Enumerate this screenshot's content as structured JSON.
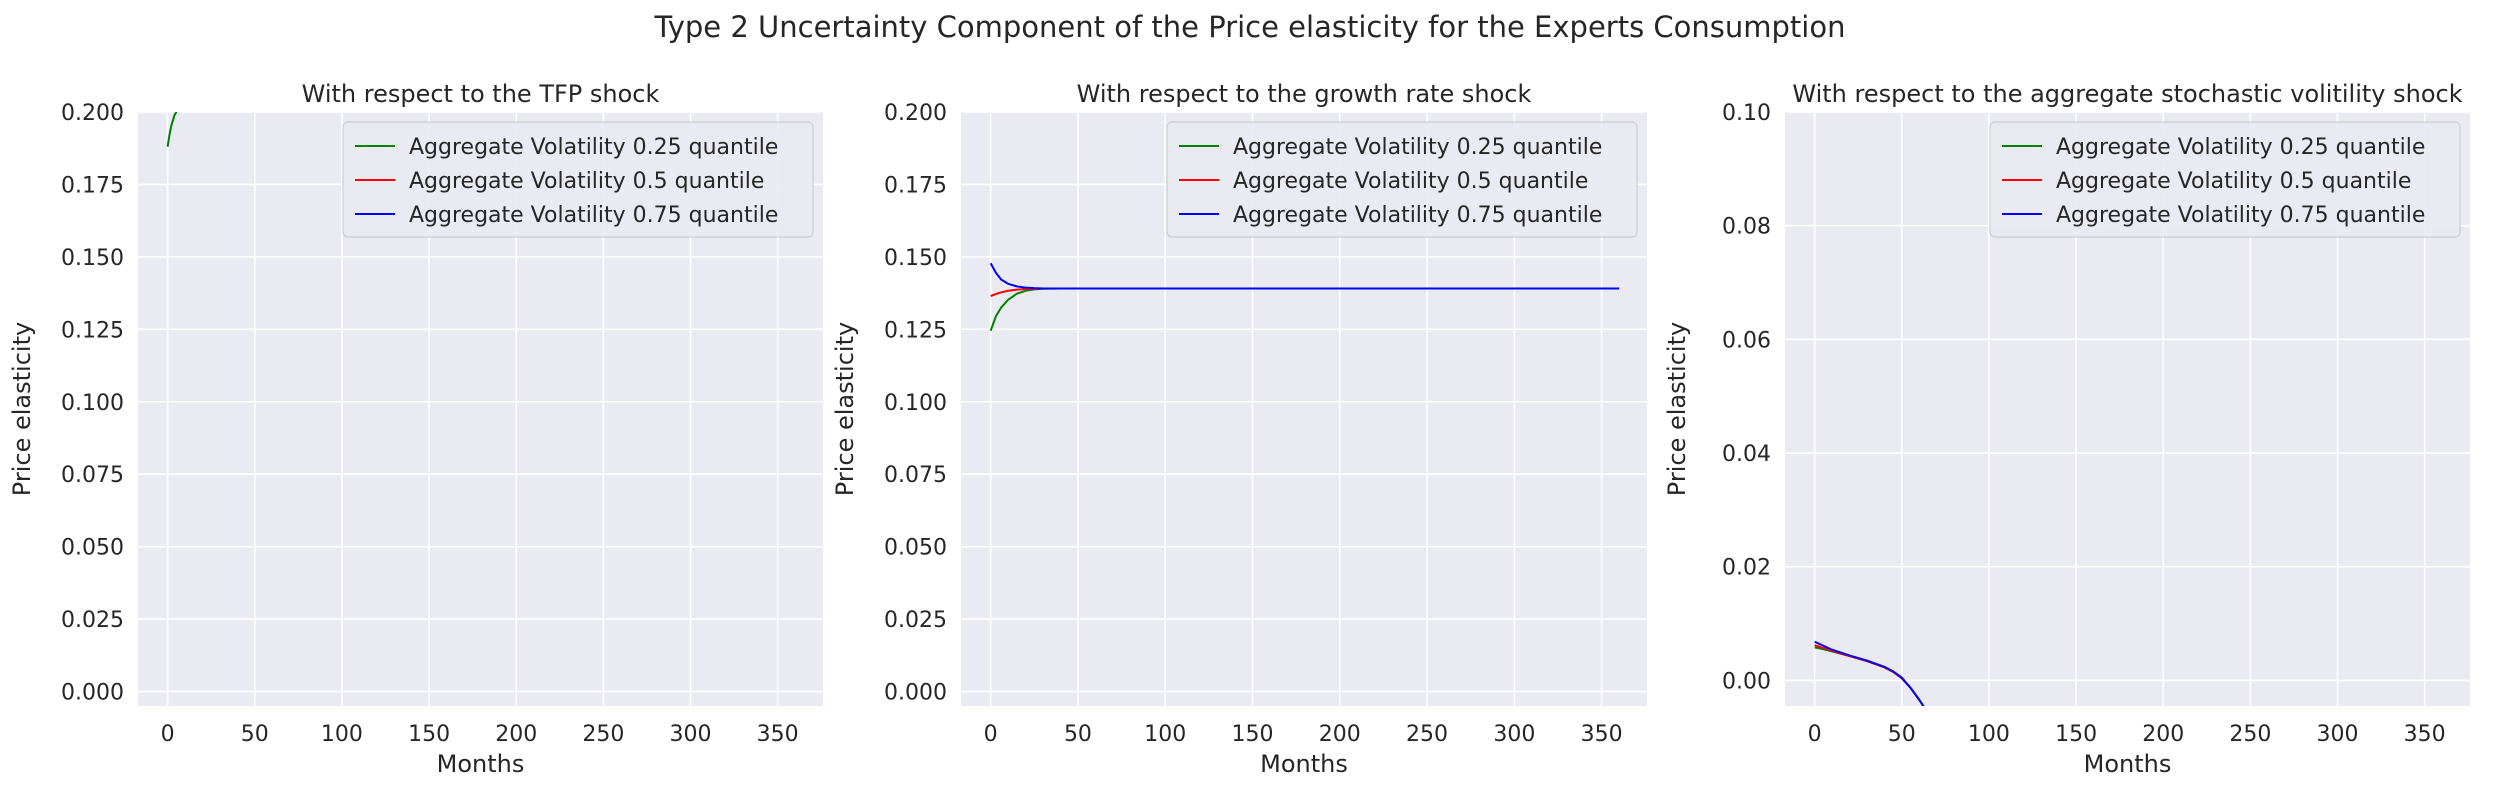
{
  "suptitle": "Type 2 Uncertainty Component of the Price elasticity for the Experts Consumption",
  "colors": {
    "background": "#eaeaf2",
    "grid": "#ffffff",
    "legend_bg": "#eaeaf2",
    "legend_edge": "#cccccc"
  },
  "chart_data": [
    {
      "type": "line",
      "title": "With respect to the TFP shock",
      "xlabel": "Months",
      "ylabel": "Price elasticity",
      "xlim": [
        -17,
        376
      ],
      "ylim": [
        -0.005,
        0.2
      ],
      "xticks": [
        0,
        50,
        100,
        150,
        200,
        250,
        300,
        350
      ],
      "yticks": [
        0.0,
        0.025,
        0.05,
        0.075,
        0.1,
        0.125,
        0.15,
        0.175,
        0.2
      ],
      "ytick_labels": [
        "0.000",
        "0.025",
        "0.050",
        "0.075",
        "0.100",
        "0.125",
        "0.150",
        "0.175",
        "0.200"
      ],
      "grid": true,
      "legend_position": "top-right",
      "series": [
        {
          "name": "Aggregate Volatility 0.25 quantile",
          "color": "#008000",
          "x": [
            0,
            1,
            2,
            3,
            4,
            5,
            6
          ],
          "y": [
            0.188,
            0.192,
            0.195,
            0.197,
            0.199,
            0.2,
            0.202
          ]
        },
        {
          "name": "Aggregate Volatility 0.5 quantile",
          "color": "#ff0000",
          "x": [],
          "y": []
        },
        {
          "name": "Aggregate Volatility 0.75 quantile",
          "color": "#0000ff",
          "x": [],
          "y": []
        }
      ]
    },
    {
      "type": "line",
      "title": "With respect to the growth rate shock",
      "xlabel": "Months",
      "ylabel": "Price elasticity",
      "xlim": [
        -17,
        376
      ],
      "ylim": [
        -0.005,
        0.2
      ],
      "xticks": [
        0,
        50,
        100,
        150,
        200,
        250,
        300,
        350
      ],
      "yticks": [
        0.0,
        0.025,
        0.05,
        0.075,
        0.1,
        0.125,
        0.15,
        0.175,
        0.2
      ],
      "ytick_labels": [
        "0.000",
        "0.025",
        "0.050",
        "0.075",
        "0.100",
        "0.125",
        "0.150",
        "0.175",
        "0.200"
      ],
      "grid": true,
      "legend_position": "top-right",
      "series": [
        {
          "name": "Aggregate Volatility 0.25 quantile",
          "color": "#008000",
          "x": [
            0,
            3,
            6,
            10,
            15,
            20,
            25,
            30,
            40,
            50,
            100,
            200,
            300,
            360
          ],
          "y": [
            0.1245,
            0.1295,
            0.1325,
            0.1352,
            0.1373,
            0.1383,
            0.1388,
            0.139,
            0.1391,
            0.1391,
            0.1391,
            0.1391,
            0.1391,
            0.1391
          ]
        },
        {
          "name": "Aggregate Volatility 0.5 quantile",
          "color": "#ff0000",
          "x": [
            0,
            5,
            10,
            15,
            20,
            30,
            40,
            50,
            100,
            200,
            300,
            360
          ],
          "y": [
            0.1365,
            0.1376,
            0.1383,
            0.1387,
            0.1389,
            0.1391,
            0.1391,
            0.1391,
            0.1391,
            0.1391,
            0.1391,
            0.1391
          ]
        },
        {
          "name": "Aggregate Volatility 0.75 quantile",
          "color": "#0000ff",
          "x": [
            0,
            3,
            6,
            10,
            15,
            20,
            25,
            30,
            40,
            50,
            100,
            200,
            300,
            360
          ],
          "y": [
            0.1478,
            0.1445,
            0.1422,
            0.1407,
            0.1398,
            0.1394,
            0.1392,
            0.1391,
            0.1391,
            0.1391,
            0.1391,
            0.1391,
            0.1391,
            0.1391
          ]
        }
      ]
    },
    {
      "type": "line",
      "title": "With respect to the aggregate stochastic volitility shock",
      "xlabel": "Months",
      "ylabel": "Price elasticity",
      "xlim": [
        -17,
        376
      ],
      "ylim": [
        -0.0045,
        0.1
      ],
      "xticks": [
        0,
        50,
        100,
        150,
        200,
        250,
        300,
        350
      ],
      "yticks": [
        0.0,
        0.02,
        0.04,
        0.06,
        0.08,
        0.1
      ],
      "ytick_labels": [
        "0.00",
        "0.02",
        "0.04",
        "0.06",
        "0.08",
        "0.10"
      ],
      "grid": true,
      "legend_position": "top-right",
      "series": [
        {
          "name": "Aggregate Volatility 0.25 quantile",
          "color": "#008000",
          "x": [
            0,
            5,
            10,
            20,
            30,
            40,
            45,
            50,
            55,
            60,
            63
          ],
          "y": [
            0.0058,
            0.0055,
            0.0051,
            0.0043,
            0.0034,
            0.0023,
            0.0015,
            0.0004,
            -0.0013,
            -0.0034,
            -0.0048
          ]
        },
        {
          "name": "Aggregate Volatility 0.5 quantile",
          "color": "#ff0000",
          "x": [
            0,
            5,
            10,
            20,
            30,
            40,
            45,
            50,
            55,
            60,
            63
          ],
          "y": [
            0.0062,
            0.0057,
            0.0052,
            0.0043,
            0.0034,
            0.0023,
            0.0015,
            0.0004,
            -0.0013,
            -0.0034,
            -0.0048
          ]
        },
        {
          "name": "Aggregate Volatility 0.75 quantile",
          "color": "#0000ff",
          "x": [
            0,
            5,
            10,
            20,
            30,
            40,
            45,
            50,
            55,
            60,
            63
          ],
          "y": [
            0.0068,
            0.0061,
            0.0054,
            0.0044,
            0.0035,
            0.0024,
            0.0016,
            0.0005,
            -0.0013,
            -0.0034,
            -0.0048
          ]
        }
      ]
    }
  ]
}
